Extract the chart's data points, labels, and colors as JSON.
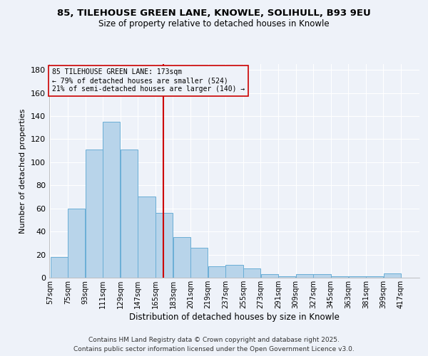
{
  "title": "85, TILEHOUSE GREEN LANE, KNOWLE, SOLIHULL, B93 9EU",
  "subtitle": "Size of property relative to detached houses in Knowle",
  "xlabel": "Distribution of detached houses by size in Knowle",
  "ylabel": "Number of detached properties",
  "bin_labels": [
    "57sqm",
    "75sqm",
    "93sqm",
    "111sqm",
    "129sqm",
    "147sqm",
    "165sqm",
    "183sqm",
    "201sqm",
    "219sqm",
    "237sqm",
    "255sqm",
    "273sqm",
    "291sqm",
    "309sqm",
    "327sqm",
    "345sqm",
    "363sqm",
    "381sqm",
    "399sqm",
    "417sqm"
  ],
  "bin_starts": [
    57,
    75,
    93,
    111,
    129,
    147,
    165,
    183,
    201,
    219,
    237,
    255,
    273,
    291,
    309,
    327,
    345,
    363,
    381,
    399,
    417
  ],
  "bin_width": 18,
  "counts": [
    18,
    60,
    111,
    135,
    111,
    70,
    56,
    35,
    26,
    10,
    11,
    8,
    3,
    1,
    3,
    3,
    1,
    1,
    1,
    4,
    0
  ],
  "bar_color": "#b8d4ea",
  "bar_edge_color": "#6aaed6",
  "vline_x": 173,
  "vline_color": "#cc0000",
  "annotation_line1": "85 TILEHOUSE GREEN LANE: 173sqm",
  "annotation_line2": "← 79% of detached houses are smaller (524)",
  "annotation_line3": "21% of semi-detached houses are larger (140) →",
  "annotation_box_edge_color": "#cc0000",
  "ylim": [
    0,
    185
  ],
  "yticks": [
    0,
    20,
    40,
    60,
    80,
    100,
    120,
    140,
    160,
    180
  ],
  "footer1": "Contains HM Land Registry data © Crown copyright and database right 2025.",
  "footer2": "Contains public sector information licensed under the Open Government Licence v3.0.",
  "background_color": "#eef2f9",
  "grid_color": "#ffffff"
}
